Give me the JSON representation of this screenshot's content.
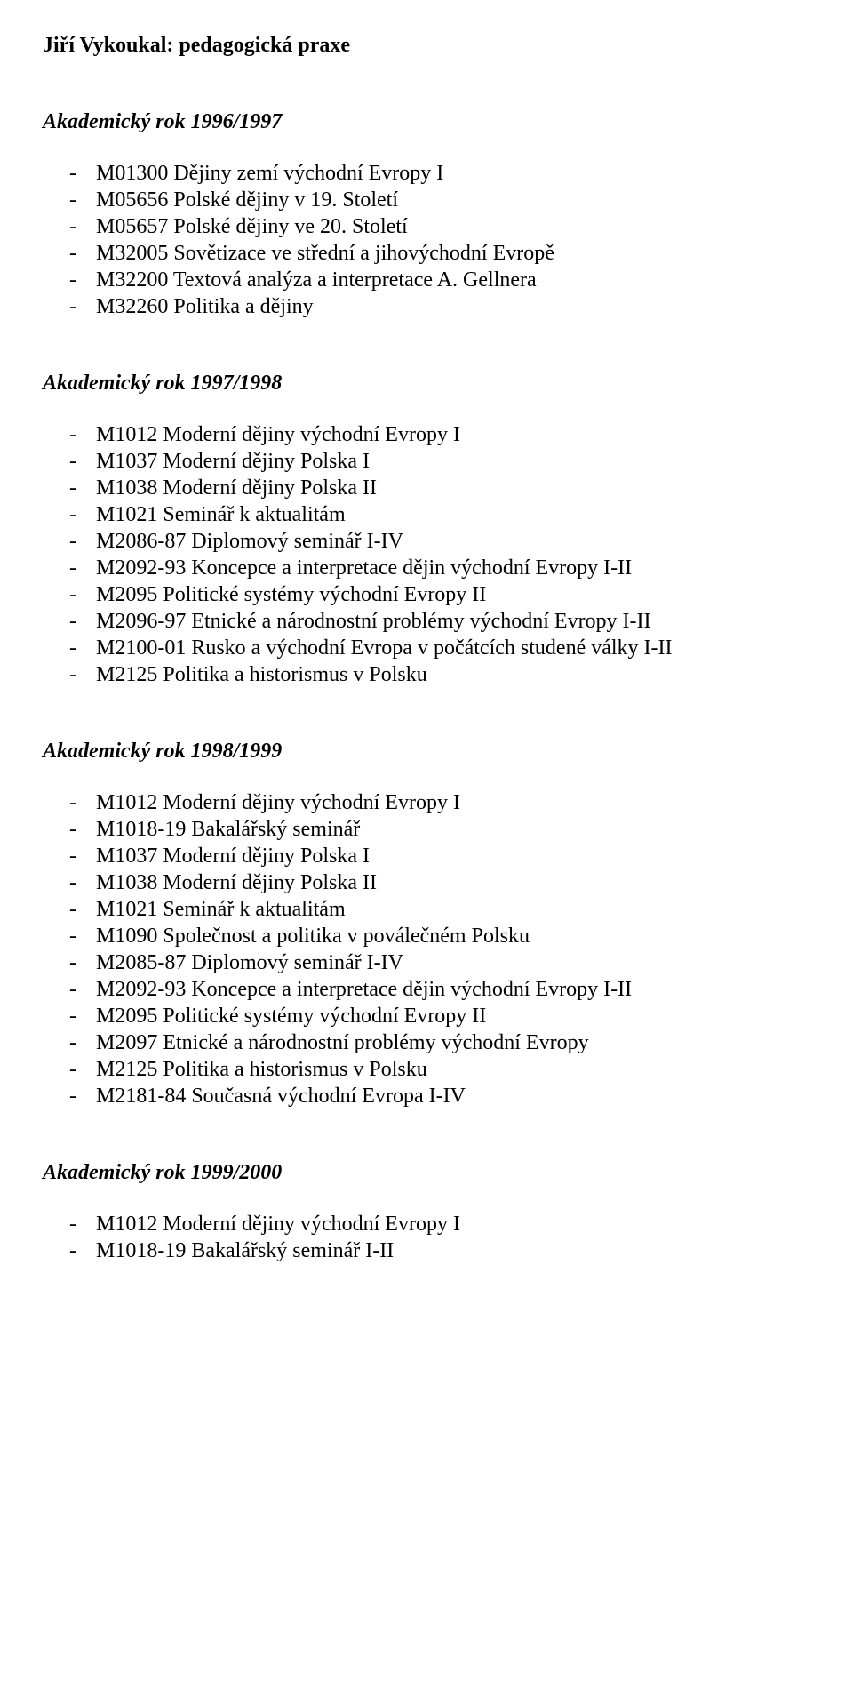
{
  "title": "Jiří Vykoukal: pedagogická praxe",
  "sections": [
    {
      "heading": "Akademický rok 1996/1997",
      "items": [
        "M01300 Dějiny zemí východní Evropy I",
        "M05656 Polské dějiny v 19. Století",
        "M05657 Polské dějiny ve 20. Století",
        "M32005 Sovětizace ve střední a jihovýchodní Evropě",
        "M32200 Textová analýza a interpretace A. Gellnera",
        "M32260 Politika a dějiny"
      ]
    },
    {
      "heading": "Akademický rok 1997/1998",
      "items": [
        "M1012 Moderní dějiny východní Evropy I",
        "M1037 Moderní dějiny Polska I",
        "M1038 Moderní dějiny Polska II",
        "M1021 Seminář k aktualitám",
        "M2086-87 Diplomový seminář I-IV",
        "M2092-93 Koncepce a interpretace dějin východní Evropy I-II",
        "M2095 Politické systémy východní Evropy II",
        "M2096-97 Etnické a národnostní problémy východní Evropy I-II",
        "M2100-01 Rusko a východní Evropa v počátcích studené války I-II",
        "M2125 Politika a historismus v Polsku"
      ]
    },
    {
      "heading": "Akademický rok 1998/1999",
      "items": [
        "M1012 Moderní dějiny východní Evropy I",
        "M1018-19 Bakalářský seminář",
        "M1037 Moderní dějiny Polska I",
        "M1038 Moderní dějiny Polska II",
        "M1021 Seminář k aktualitám",
        "M1090 Společnost a politika v poválečném Polsku",
        "M2085-87 Diplomový seminář I-IV",
        "M2092-93 Koncepce a interpretace dějin východní Evropy I-II",
        "M2095 Politické systémy východní Evropy II",
        "M2097 Etnické a národnostní problémy východní Evropy",
        "M2125 Politika a historismus v Polsku",
        "M2181-84 Současná východní Evropa I-IV"
      ]
    },
    {
      "heading": "Akademický rok 1999/2000",
      "items": [
        "M1012 Moderní dějiny východní Evropy I",
        "M1018-19 Bakalářský seminář I-II"
      ]
    }
  ]
}
